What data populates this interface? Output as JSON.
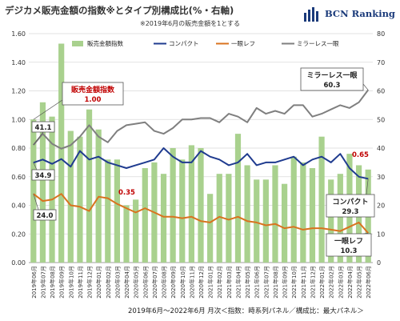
{
  "header": {
    "title": "デジカメ販売金額の指数※とタイプ別構成比(%・右軸)",
    "subtitle": "※2019年6月の販売金額を1とする",
    "brand": "BCN Ranking"
  },
  "footer": {
    "note": "2019年6月～2022年6月 月次＜指数：時系列パネル／構成比：最大パネル＞"
  },
  "chart_data": {
    "type": "bar",
    "categories": [
      "2019年06月",
      "2019年07月",
      "2019年08月",
      "2019年09月",
      "2019年10月",
      "2019年11月",
      "2019年12月",
      "2020年01月",
      "2020年02月",
      "2020年03月",
      "2020年04月",
      "2020年05月",
      "2020年06月",
      "2020年07月",
      "2020年08月",
      "2020年09月",
      "2020年10月",
      "2020年11月",
      "2020年12月",
      "2021年01月",
      "2021年02月",
      "2021年03月",
      "2021年04月",
      "2021年05月",
      "2021年06月",
      "2021年07月",
      "2021年08月",
      "2021年09月",
      "2021年10月",
      "2021年11月",
      "2021年12月",
      "2022年01月",
      "2022年02月",
      "2022年03月",
      "2022年04月",
      "2022年05月",
      "2022年06月"
    ],
    "left_axis": {
      "ylim": [
        0,
        1.6
      ],
      "ticks": [
        "0.00",
        "0.20",
        "0.40",
        "0.60",
        "0.80",
        "1.00",
        "1.20",
        "1.40",
        "1.60"
      ]
    },
    "right_axis": {
      "ylim": [
        0,
        80
      ],
      "ticks": [
        "0",
        "10",
        "20",
        "30",
        "40",
        "50",
        "60",
        "70",
        "80"
      ]
    },
    "series": [
      {
        "name": "販売金額指数",
        "axis": "left",
        "kind": "bar",
        "color": "#a9d18e",
        "values": [
          1.0,
          1.12,
          1.02,
          1.53,
          0.92,
          0.88,
          1.07,
          0.93,
          0.72,
          0.72,
          0.4,
          0.44,
          0.66,
          0.7,
          0.62,
          0.8,
          0.72,
          0.82,
          0.8,
          0.48,
          0.62,
          0.62,
          0.9,
          0.68,
          0.58,
          0.58,
          0.68,
          0.55,
          0.74,
          0.7,
          0.66,
          0.88,
          0.58,
          0.62,
          0.76,
          0.68,
          0.65
        ]
      },
      {
        "name": "コンパクト",
        "axis": "right",
        "kind": "line",
        "color": "#1f3b8f",
        "values": [
          34.9,
          36.0,
          34.5,
          36.2,
          33.5,
          39.0,
          36.0,
          37.0,
          35.0,
          34.0,
          33.0,
          34.0,
          35.0,
          36.0,
          40.0,
          37.0,
          35.0,
          35.0,
          39.0,
          37.0,
          36.0,
          34.0,
          35.0,
          38.0,
          34.0,
          35.0,
          35.0,
          36.0,
          37.0,
          34.0,
          36.0,
          37.0,
          35.0,
          38.0,
          33.0,
          30.0,
          29.3
        ]
      },
      {
        "name": "一眼レフ",
        "axis": "right",
        "kind": "line",
        "color": "#d9731f",
        "values": [
          24.0,
          21.5,
          22.0,
          24.0,
          20.0,
          19.5,
          18.0,
          23.0,
          22.5,
          20.5,
          19.0,
          17.5,
          19.0,
          17.5,
          16.0,
          16.0,
          15.5,
          16.0,
          14.5,
          14.0,
          16.0,
          15.0,
          16.0,
          14.5,
          14.0,
          13.0,
          13.5,
          12.0,
          12.5,
          11.5,
          12.0,
          12.0,
          11.5,
          11.0,
          12.5,
          14.0,
          10.3
        ]
      },
      {
        "name": "ミラーレス一眼",
        "axis": "right",
        "kind": "line",
        "color": "#7f7f7f",
        "values": [
          41.1,
          45.0,
          41.5,
          39.8,
          41.0,
          44.0,
          48.0,
          44.0,
          42.0,
          46.0,
          48.0,
          48.5,
          49.0,
          46.0,
          45.0,
          47.0,
          50.0,
          50.0,
          50.5,
          50.5,
          49.0,
          52.0,
          51.0,
          49.0,
          54.0,
          52.0,
          53.0,
          52.0,
          55.0,
          55.0,
          51.0,
          52.0,
          53.5,
          55.0,
          54.0,
          56.0,
          60.3
        ]
      }
    ],
    "annotations": [
      {
        "label": "販売金額指数",
        "value": "1.00",
        "color": "red"
      },
      {
        "value": "0.35",
        "color": "red"
      },
      {
        "value": "0.65",
        "color": "red"
      },
      {
        "value": "41.1"
      },
      {
        "value": "34.9"
      },
      {
        "value": "24.0"
      },
      {
        "label": "ミラーレス一眼",
        "value": "60.3"
      },
      {
        "label": "コンパクト",
        "value": "29.3"
      },
      {
        "label": "一眼レフ",
        "value": "10.3"
      }
    ],
    "grid": true,
    "legend": "top"
  }
}
